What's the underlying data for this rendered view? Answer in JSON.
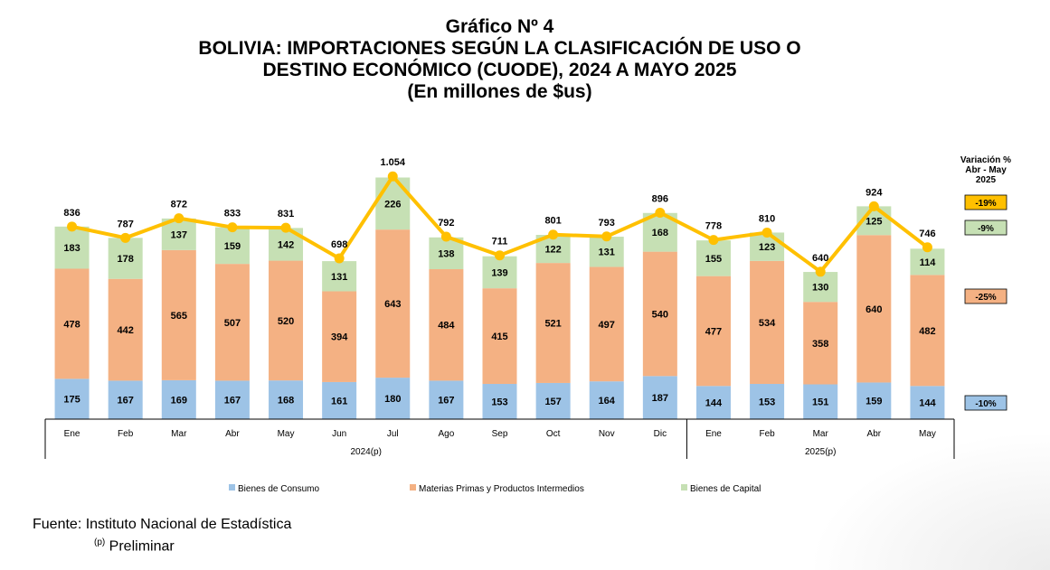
{
  "title": {
    "line1": "Gráfico Nº 4",
    "line2": "BOLIVIA: IMPORTACIONES SEGÚN LA CLASIFICACIÓN DE USO O",
    "line3": "DESTINO ECONÓMICO (CUODE), 2024 A MAYO 2025",
    "line4": "(En millones de $us)"
  },
  "variation": {
    "header": [
      "Variación %",
      "Abr - May",
      "2025"
    ],
    "items": [
      {
        "label": "-19%",
        "color": "#FFC000",
        "for": "Total"
      },
      {
        "label": "-9%",
        "color": "#C6E0B4",
        "for": "Bienes de Capital"
      },
      {
        "label": "-25%",
        "color": "#F4B183",
        "for": "Materias Primas y Productos Intermedios"
      },
      {
        "label": "-10%",
        "color": "#9DC3E6",
        "for": "Bienes de Consumo"
      }
    ]
  },
  "chart_data": {
    "type": "bar",
    "stacked": true,
    "categories": [
      "Ene",
      "Feb",
      "Mar",
      "Abr",
      "May",
      "Jun",
      "Jul",
      "Ago",
      "Sep",
      "Oct",
      "Nov",
      "Dic",
      "Ene",
      "Feb",
      "Mar",
      "Abr",
      "May"
    ],
    "groups": [
      {
        "label": "2024(p)",
        "count": 12
      },
      {
        "label": "2025(p)",
        "count": 5
      }
    ],
    "series": [
      {
        "name": "Bienes de Consumo",
        "color": "#9DC3E6",
        "values": [
          175,
          167,
          169,
          167,
          168,
          161,
          180,
          167,
          153,
          157,
          164,
          187,
          144,
          153,
          151,
          159,
          144
        ]
      },
      {
        "name": "Materias Primas y Productos Intermedios",
        "color": "#F4B183",
        "values": [
          478,
          442,
          565,
          507,
          520,
          394,
          643,
          484,
          415,
          521,
          497,
          540,
          477,
          534,
          358,
          640,
          482
        ]
      },
      {
        "name": "Bienes de Capital",
        "color": "#C6E0B4",
        "values": [
          183,
          178,
          137,
          159,
          142,
          131,
          226,
          138,
          139,
          122,
          131,
          168,
          155,
          123,
          130,
          125,
          114
        ]
      }
    ],
    "totals": {
      "values": [
        836,
        787,
        872,
        833,
        831,
        698,
        1054,
        792,
        711,
        801,
        793,
        896,
        778,
        810,
        640,
        924,
        746
      ],
      "labels": [
        "836",
        "787",
        "872",
        "833",
        "831",
        "698",
        "1.054",
        "792",
        "711",
        "801",
        "793",
        "896",
        "778",
        "810",
        "640",
        "924",
        "746"
      ],
      "line_color": "#FFC000"
    },
    "ylim": [
      0,
      1150
    ],
    "legend": [
      "Bienes de Consumo",
      "Materias Primas y Productos Intermedios",
      "Bienes de Capital"
    ],
    "legend_position": "bottom"
  },
  "source": {
    "line1": "Fuente: Instituto Nacional de Estadística",
    "note_mark": "(p)",
    "note_text": " Preliminar"
  }
}
